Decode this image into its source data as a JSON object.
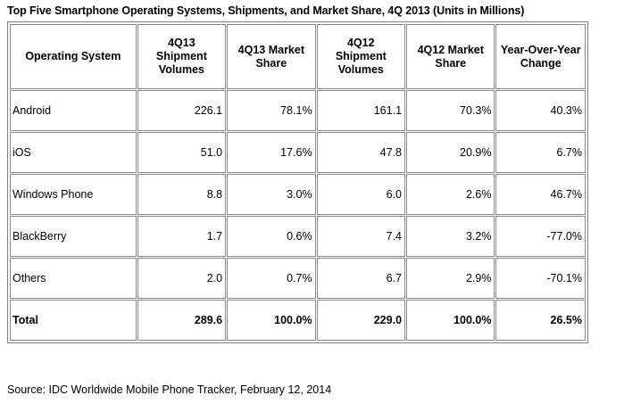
{
  "title": "Top Five Smartphone Operating Systems, Shipments, and Market Share, 4Q 2013 (Units in Millions)",
  "table": {
    "headers": [
      "Operating System",
      "4Q13 Shipment Volumes",
      "4Q13 Market Share",
      "4Q12 Shipment Volumes",
      "4Q12 Market Share",
      "Year-Over-Year Change"
    ],
    "rows": [
      [
        "Android",
        "226.1",
        "78.1%",
        "161.1",
        "70.3%",
        "40.3%"
      ],
      [
        "iOS",
        "51.0",
        "17.6%",
        "47.8",
        "20.9%",
        "6.7%"
      ],
      [
        "Windows Phone",
        "8.8",
        "3.0%",
        "6.0",
        "2.6%",
        "46.7%"
      ],
      [
        "BlackBerry",
        "1.7",
        "0.6%",
        "7.4",
        "3.2%",
        "-77.0%"
      ],
      [
        "Others",
        "2.0",
        "0.7%",
        "6.7",
        "2.9%",
        "-70.1%"
      ]
    ],
    "total": [
      "Total",
      "289.6",
      "100.0%",
      "229.0",
      "100.0%",
      "26.5%"
    ]
  },
  "source": "Source: IDC Worldwide Mobile Phone Tracker, February 12, 2014"
}
